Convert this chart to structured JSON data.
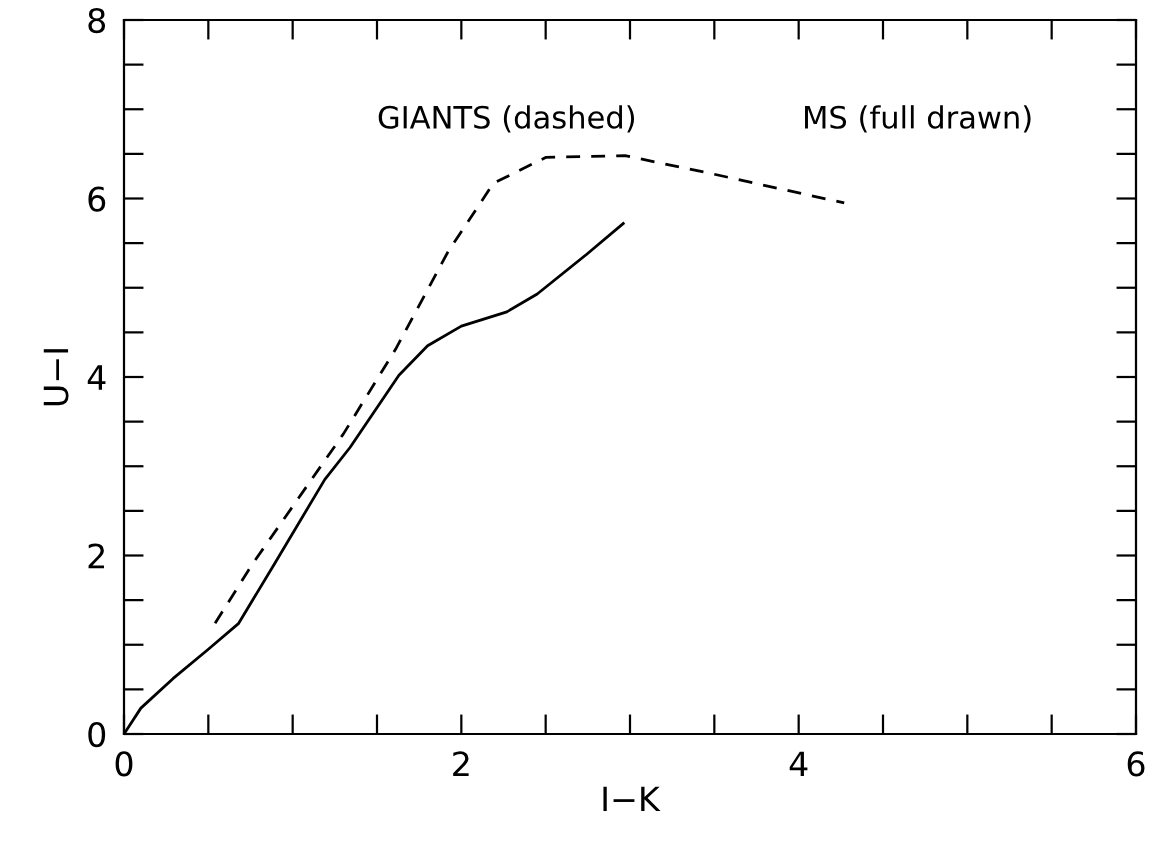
{
  "chart_data": {
    "type": "line",
    "xlabel": "I−K",
    "ylabel": "U−I",
    "annotations": [
      "GIANTS (dashed)",
      "MS (full drawn)"
    ],
    "series": [
      {
        "color": "#000000",
        "line_style": "solid",
        "x": [
          0,
          0.1,
          0.29,
          0.5,
          0.68,
          0.89,
          1.19,
          1.34,
          1.63,
          1.8,
          2.0,
          2.27,
          2.45,
          2.74,
          2.96
        ],
        "values": [
          0,
          0.29,
          0.62,
          0.95,
          1.24,
          1.9,
          2.85,
          3.21,
          4.02,
          4.35,
          4.57,
          4.73,
          4.93,
          5.37,
          5.72
        ]
      },
      {
        "color": "#000000",
        "line_style": "dashed",
        "x": [
          0.54,
          0.76,
          1.03,
          1.3,
          1.61,
          1.92,
          2.19,
          2.5,
          2.97,
          3.48,
          4.27
        ],
        "values": [
          1.24,
          1.9,
          2.63,
          3.36,
          4.31,
          5.4,
          6.17,
          6.46,
          6.48,
          6.28,
          5.95
        ]
      }
    ],
    "xlim": [
      0,
      6
    ],
    "ylim": [
      0,
      8
    ],
    "xticks": [
      0,
      {
        "value": 0.5,
        "label": null
      },
      {
        "value": 1,
        "label": null
      },
      {
        "value": 1.5,
        "label": null
      },
      2,
      {
        "value": 2.5,
        "label": null
      },
      {
        "value": 3,
        "label": null
      },
      {
        "value": 3.5,
        "label": null
      },
      4,
      {
        "value": 4.5,
        "label": null
      },
      {
        "value": 5,
        "label": null
      },
      {
        "value": 5.5,
        "label": null
      },
      6
    ],
    "yticks": [
      0,
      {
        "value": 0.5,
        "label": null
      },
      {
        "value": 1,
        "label": null
      },
      {
        "value": 1.5,
        "label": null
      },
      2,
      {
        "value": 2.5,
        "label": null
      },
      {
        "value": 3,
        "label": null
      },
      {
        "value": 3.5,
        "label": null
      },
      4,
      {
        "value": 4.5,
        "label": null
      },
      {
        "value": 5,
        "label": null
      },
      {
        "value": 5.5,
        "label": null
      },
      6,
      {
        "value": 6.5,
        "label": null
      },
      {
        "value": 7,
        "label": null
      },
      {
        "value": 7.5,
        "label": null
      },
      8
    ],
    "grid": false,
    "legend": false,
    "marker": "none"
  }
}
